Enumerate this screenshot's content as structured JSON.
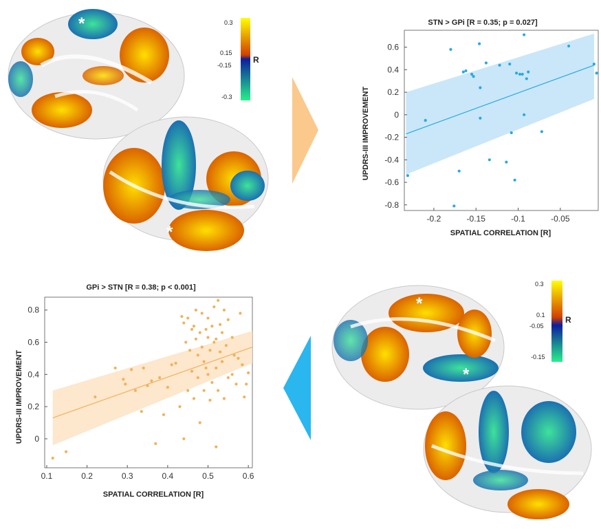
{
  "colorbars": [
    {
      "max": "0.3",
      "mid_pos": "0.15",
      "mid_neg": "-0.15",
      "min": "-0.3",
      "label": "R"
    },
    {
      "max": "0.3",
      "mid_pos": "0.1",
      "mid_neg": "-0.05",
      "min": "-0.15",
      "label": "R"
    }
  ],
  "brain_markers": [
    "*",
    "*",
    "*",
    "*"
  ],
  "colors": {
    "blue_series": "#29a9e0",
    "orange_series": "#f0b25b",
    "blue_band": "#bfe3f7",
    "orange_band": "#fde3c4",
    "arrow_orange": "#fbc98c",
    "arrow_blue": "#2ab6ef"
  },
  "chart_data": [
    {
      "type": "scatter",
      "title": "STN > GPi [R = 0.35; p = 0.027]",
      "xlabel": "SPATIAL CORRELATION [R]",
      "ylabel": "UPDRS-III IMPROVEMENT",
      "xlim": [
        -0.235,
        -0.005
      ],
      "ylim": [
        -0.85,
        0.75
      ],
      "xticks": [
        -0.2,
        -0.15,
        -0.1,
        -0.05
      ],
      "xtick_labels": [
        "-0.2",
        "-0.15",
        "-0.1",
        "-0.05"
      ],
      "yticks": [
        -0.8,
        -0.6,
        -0.4,
        -0.2,
        0,
        0.2,
        0.4,
        0.6
      ],
      "ytick_labels": [
        "-0.8",
        "-0.6",
        "-0.4",
        "-0.2",
        "0",
        "0.2",
        "0.4",
        "0.6"
      ],
      "grid": false,
      "fit": {
        "x": [
          -0.233,
          -0.01
        ],
        "y": [
          -0.17,
          0.44
        ]
      },
      "band": {
        "upper": [
          0.2,
          0.72
        ],
        "lower": [
          -0.53,
          0.14
        ]
      },
      "points": [
        [
          -0.231,
          -0.54
        ],
        [
          -0.21,
          -0.05
        ],
        [
          -0.18,
          0.58
        ],
        [
          -0.176,
          -0.81
        ],
        [
          -0.17,
          -0.5
        ],
        [
          -0.165,
          0.38
        ],
        [
          -0.162,
          0.39
        ],
        [
          -0.155,
          0.36
        ],
        [
          -0.153,
          0.34
        ],
        [
          -0.146,
          0.63
        ],
        [
          -0.145,
          0.24
        ],
        [
          -0.145,
          -0.03
        ],
        [
          -0.138,
          0.46
        ],
        [
          -0.134,
          -0.4
        ],
        [
          -0.122,
          0.44
        ],
        [
          -0.114,
          -0.42
        ],
        [
          -0.11,
          0.45
        ],
        [
          -0.108,
          -0.16
        ],
        [
          -0.104,
          -0.58
        ],
        [
          -0.102,
          0.37
        ],
        [
          -0.098,
          0.36
        ],
        [
          -0.095,
          0.36
        ],
        [
          -0.093,
          0.71
        ],
        [
          -0.093,
          0.0
        ],
        [
          -0.09,
          0.32
        ],
        [
          -0.088,
          0.38
        ],
        [
          -0.072,
          -0.15
        ],
        [
          -0.04,
          0.61
        ],
        [
          -0.01,
          0.45
        ],
        [
          -0.007,
          0.37
        ]
      ]
    },
    {
      "type": "scatter",
      "title": "GPi > STN [R = 0.38; p < 0.001]",
      "xlabel": "SPATIAL CORRELATION [R]",
      "ylabel": "UPDRS-III IMPROVEMENT",
      "xlim": [
        0.095,
        0.61
      ],
      "ylim": [
        -0.18,
        0.88
      ],
      "xticks": [
        0.1,
        0.2,
        0.3,
        0.4,
        0.5,
        0.6
      ],
      "xtick_labels": [
        "0.1",
        "0.2",
        "0.3",
        "0.4",
        "0.5",
        "0.6"
      ],
      "yticks": [
        0,
        0.2,
        0.4,
        0.6,
        0.8
      ],
      "ytick_labels": [
        "0",
        "0.2",
        "0.4",
        "0.6",
        "0.8"
      ],
      "grid": false,
      "fit": {
        "x": [
          0.115,
          0.61
        ],
        "y": [
          0.13,
          0.57
        ]
      },
      "band": {
        "upper": [
          0.3,
          0.67
        ],
        "lower": [
          -0.04,
          0.47
        ]
      },
      "points": [
        [
          0.115,
          -0.12
        ],
        [
          0.148,
          -0.08
        ],
        [
          0.22,
          0.26
        ],
        [
          0.27,
          0.44
        ],
        [
          0.29,
          0.37
        ],
        [
          0.295,
          0.34
        ],
        [
          0.31,
          0.43
        ],
        [
          0.32,
          0.3
        ],
        [
          0.335,
          0.17
        ],
        [
          0.34,
          0.44
        ],
        [
          0.35,
          0.33
        ],
        [
          0.36,
          0.36
        ],
        [
          0.37,
          -0.03
        ],
        [
          0.38,
          0.38
        ],
        [
          0.39,
          0.15
        ],
        [
          0.4,
          0.32
        ],
        [
          0.41,
          0.46
        ],
        [
          0.42,
          0.47
        ],
        [
          0.43,
          0.2
        ],
        [
          0.435,
          0.76
        ],
        [
          0.44,
          0.72
        ],
        [
          0.44,
          0.0
        ],
        [
          0.445,
          0.6
        ],
        [
          0.45,
          0.75
        ],
        [
          0.45,
          0.3
        ],
        [
          0.455,
          0.55
        ],
        [
          0.46,
          0.42
        ],
        [
          0.46,
          0.68
        ],
        [
          0.465,
          0.7
        ],
        [
          0.465,
          0.25
        ],
        [
          0.47,
          0.62
        ],
        [
          0.47,
          0.8
        ],
        [
          0.475,
          0.52
        ],
        [
          0.475,
          0.38
        ],
        [
          0.48,
          0.66
        ],
        [
          0.48,
          0.1
        ],
        [
          0.485,
          0.57
        ],
        [
          0.485,
          0.78
        ],
        [
          0.49,
          0.48
        ],
        [
          0.49,
          0.3
        ],
        [
          0.495,
          0.44
        ],
        [
          0.495,
          0.68
        ],
        [
          0.5,
          0.63
        ],
        [
          0.5,
          0.4
        ],
        [
          0.5,
          0.75
        ],
        [
          0.505,
          0.24
        ],
        [
          0.505,
          0.55
        ],
        [
          0.51,
          0.7
        ],
        [
          0.51,
          0.35
        ],
        [
          0.515,
          0.6
        ],
        [
          0.515,
          0.82
        ],
        [
          0.52,
          0.44
        ],
        [
          0.52,
          0.62
        ],
        [
          0.52,
          -0.05
        ],
        [
          0.525,
          0.86
        ],
        [
          0.525,
          0.3
        ],
        [
          0.53,
          0.54
        ],
        [
          0.53,
          0.71
        ],
        [
          0.535,
          0.66
        ],
        [
          0.535,
          0.48
        ],
        [
          0.54,
          0.25
        ],
        [
          0.54,
          0.8
        ],
        [
          0.545,
          0.58
        ],
        [
          0.55,
          0.74
        ],
        [
          0.55,
          0.38
        ],
        [
          0.56,
          0.63
        ],
        [
          0.56,
          0.4
        ],
        [
          0.565,
          0.52
        ],
        [
          0.57,
          0.34
        ],
        [
          0.575,
          0.5
        ],
        [
          0.58,
          0.78
        ],
        [
          0.585,
          0.46
        ],
        [
          0.59,
          0.26
        ],
        [
          0.595,
          0.34
        ],
        [
          0.6,
          0.41
        ]
      ]
    }
  ]
}
